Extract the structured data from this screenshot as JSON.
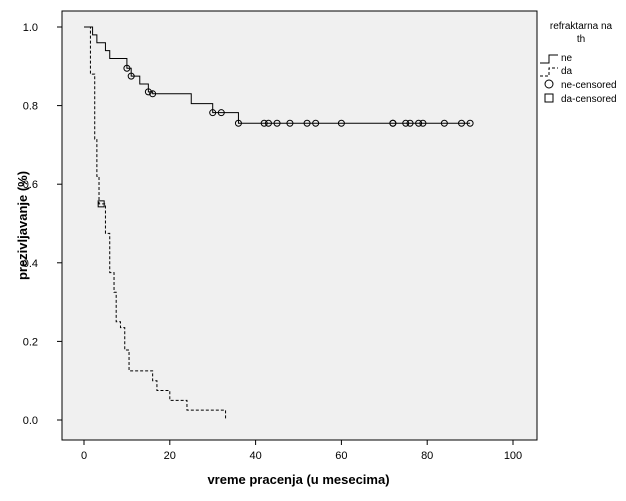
{
  "chart_data": {
    "type": "line",
    "subtype": "kaplan-meier survival curve",
    "xlabel": "vreme pracenja (u mesecima)",
    "ylabel": "prezivljavanje (%)",
    "xlim": [
      0,
      100
    ],
    "ylim": [
      0,
      1.0
    ],
    "x_ticks": [
      0,
      20,
      40,
      60,
      80,
      100
    ],
    "y_ticks": [
      0.0,
      0.2,
      0.4,
      0.6,
      0.8,
      1.0
    ],
    "y_tick_labels": [
      "0.0",
      "0.2",
      "0.4",
      "0.6",
      "0.8",
      "1.0"
    ],
    "grid": false,
    "plot_background": "#f0f0f0",
    "legend": {
      "placement": "right",
      "title_line1": "refraktarna na",
      "title_line2": "th",
      "entries": [
        {
          "label": "ne",
          "symbol": "solid-step"
        },
        {
          "label": "da",
          "symbol": "dashed-step"
        },
        {
          "label": "ne-censored",
          "symbol": "circle"
        },
        {
          "label": "da-censored",
          "symbol": "square"
        }
      ]
    },
    "series": [
      {
        "name": "ne",
        "style": "solid",
        "steps": [
          [
            0,
            1.0
          ],
          [
            2,
            0.98
          ],
          [
            3,
            0.96
          ],
          [
            5,
            0.94
          ],
          [
            6,
            0.92
          ],
          [
            10,
            0.895
          ],
          [
            11,
            0.875
          ],
          [
            13,
            0.855
          ],
          [
            15,
            0.835
          ],
          [
            16,
            0.83
          ],
          [
            25,
            0.805
          ],
          [
            30,
            0.782
          ],
          [
            36,
            0.755
          ],
          [
            90,
            0.755
          ]
        ],
        "censored": [
          10,
          11,
          15,
          16,
          30,
          32,
          36,
          42,
          43,
          45,
          48,
          52,
          54,
          60,
          72,
          72,
          75,
          76,
          78,
          79,
          84,
          88,
          90
        ]
      },
      {
        "name": "da",
        "style": "dashed",
        "steps": [
          [
            0,
            1.0
          ],
          [
            1.5,
            0.88
          ],
          [
            2.5,
            0.715
          ],
          [
            3,
            0.62
          ],
          [
            3.5,
            0.55
          ],
          [
            5,
            0.475
          ],
          [
            6,
            0.375
          ],
          [
            7,
            0.325
          ],
          [
            7.5,
            0.25
          ],
          [
            8.5,
            0.235
          ],
          [
            9.5,
            0.178
          ],
          [
            10.5,
            0.125
          ],
          [
            16,
            0.1
          ],
          [
            17,
            0.075
          ],
          [
            20,
            0.05
          ],
          [
            24,
            0.025
          ],
          [
            33,
            0.0
          ]
        ],
        "censored": [
          4
        ]
      }
    ]
  }
}
